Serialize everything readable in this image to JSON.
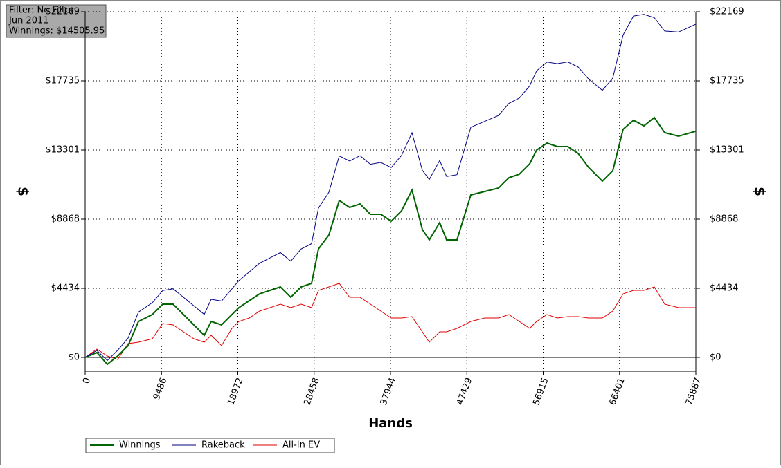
{
  "chart_data": {
    "type": "line",
    "annotations": [
      "Filter: No Filter",
      "Jun 2011",
      "Winnings: $14505.95"
    ],
    "xlabel": "Hands",
    "ylabel": "$",
    "y2label": "$",
    "xlim": [
      0,
      75887
    ],
    "xticks": [
      0,
      9486,
      18972,
      28458,
      37944,
      47429,
      56915,
      66401,
      75887
    ],
    "ylim": [
      -887,
      22169
    ],
    "yticks": [
      {
        "value": 0,
        "label": "$0"
      },
      {
        "value": 4434,
        "label": "$4434"
      },
      {
        "value": 8868,
        "label": "$8868"
      },
      {
        "value": 13301,
        "label": "$13301"
      },
      {
        "value": 17735,
        "label": "$17735"
      },
      {
        "value": 22169,
        "label": "$22169"
      }
    ],
    "grid": true,
    "legend": "bottom-left",
    "x": [
      0,
      1463,
      2753,
      4044,
      5334,
      6625,
      8346,
      9636,
      10927,
      12218,
      13508,
      14799,
      15659,
      16950,
      18240,
      19101,
      20391,
      21682,
      22973,
      24263,
      25554,
      26844,
      28135,
      28995,
      30286,
      31577,
      32867,
      34158,
      35448,
      36739,
      38030,
      39320,
      40611,
      41901,
      42762,
      44052,
      44913,
      46203,
      47924,
      49645,
      51366,
      52656,
      53947,
      55238,
      56098,
      57389,
      58679,
      59970,
      61260,
      62551,
      64272,
      65562,
      66853,
      68144,
      69434,
      70725,
      72015,
      73736,
      75887
    ],
    "series": [
      {
        "name": "Winnings",
        "color": "#006400",
        "values": [
          0,
          310,
          -443,
          89,
          754,
          2306,
          2749,
          3414,
          3414,
          2749,
          2084,
          1419,
          2306,
          2084,
          2749,
          3192,
          3636,
          4079,
          4301,
          4523,
          3858,
          4523,
          4745,
          6961,
          7848,
          10065,
          9621,
          9843,
          9178,
          9178,
          8735,
          9400,
          10730,
          8202,
          7537,
          8646,
          7537,
          7537,
          10420,
          10642,
          10864,
          11529,
          11751,
          12416,
          13303,
          13746,
          13525,
          13525,
          13081,
          12195,
          11308,
          11973,
          14634,
          15210,
          14855,
          15387,
          14412,
          14190,
          14506
        ]
      },
      {
        "name": "Rakeback",
        "color": "#000080",
        "values": [
          0,
          442,
          -194,
          455,
          1237,
          2906,
          3505,
          4286,
          4403,
          3855,
          3307,
          2759,
          3724,
          3619,
          4400,
          4921,
          5482,
          6042,
          6381,
          6720,
          6172,
          6953,
          7292,
          9586,
          10590,
          12924,
          12597,
          12936,
          12387,
          12504,
          12178,
          12960,
          14407,
          11996,
          11409,
          12634,
          11603,
          11720,
          14759,
          15137,
          15515,
          16296,
          16635,
          17417,
          18382,
          18942,
          18838,
          18955,
          18627,
          17858,
          17127,
          17909,
          20687,
          21900,
          22000,
          21790,
          20932,
          20866,
          21377
        ]
      },
      {
        "name": "All-In EV",
        "color": "#e00000",
        "values": [
          0,
          532,
          89,
          -133,
          887,
          975,
          1197,
          2173,
          2084,
          1641,
          1197,
          975,
          1419,
          754,
          1862,
          2306,
          2527,
          2971,
          3192,
          3414,
          3192,
          3414,
          3192,
          4301,
          4523,
          4744,
          3858,
          3858,
          3414,
          2971,
          2527,
          2527,
          2616,
          1641,
          975,
          1641,
          1641,
          1862,
          2306,
          2527,
          2527,
          2749,
          2306,
          1862,
          2306,
          2749,
          2527,
          2616,
          2616,
          2527,
          2527,
          2971,
          4079,
          4301,
          4301,
          4523,
          3414,
          3192,
          3192
        ]
      }
    ]
  }
}
